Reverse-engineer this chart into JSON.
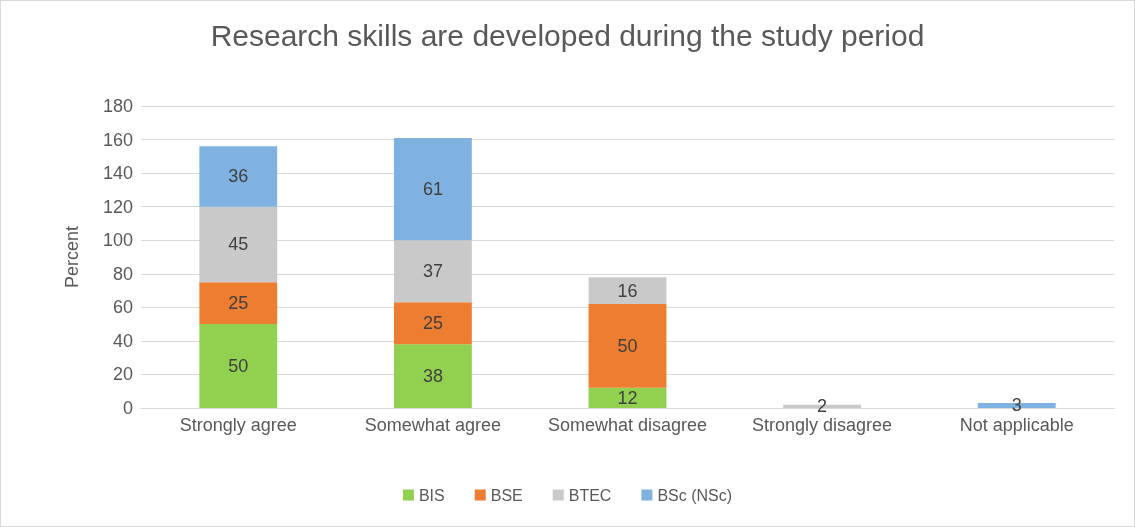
{
  "chart_data": {
    "type": "bar",
    "title": "Research skills are developed during the study period",
    "ylabel": "Percent",
    "categories": [
      "Strongly agree",
      "Somewhat agree",
      "Somewhat disagree",
      "Strongly disagree",
      "Not applicable"
    ],
    "series": [
      {
        "name": "BIS",
        "color": "#92d050",
        "values": [
          50,
          38,
          12,
          null,
          null
        ]
      },
      {
        "name": "BSE",
        "color": "#ed7d31",
        "values": [
          25,
          25,
          50,
          null,
          null
        ]
      },
      {
        "name": "BTEC",
        "color": "#c9c9c9",
        "values": [
          45,
          37,
          16,
          2,
          null
        ]
      },
      {
        "name": "BSc (NSc)",
        "color": "#7fb2e0",
        "values": [
          36,
          61,
          null,
          null,
          3
        ]
      }
    ],
    "stacked": true,
    "ylim": [
      0,
      180
    ],
    "yticks": [
      0,
      20,
      40,
      60,
      80,
      100,
      120,
      140,
      160,
      180
    ],
    "grid": "y",
    "legend": "bottom",
    "data_labels": true
  }
}
